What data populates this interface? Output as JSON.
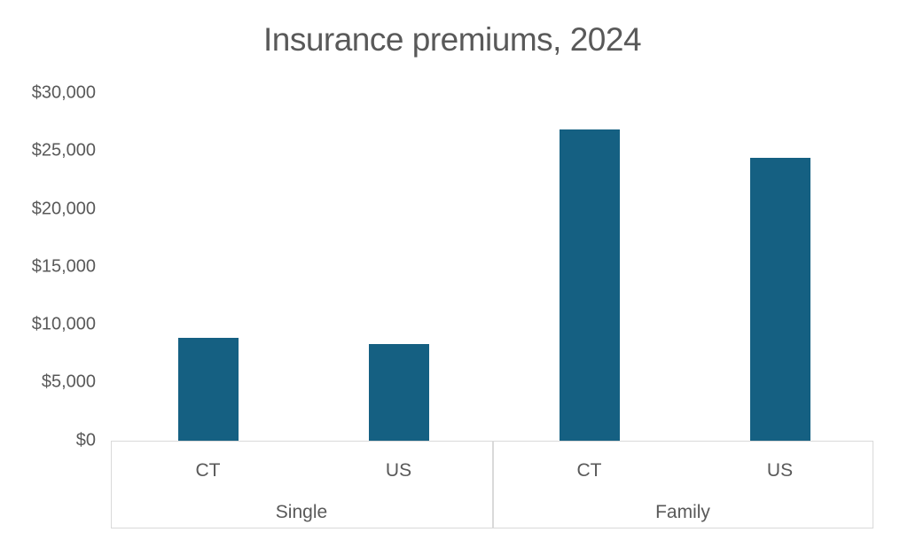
{
  "title": "Insurance premiums, 2024",
  "chart_data": {
    "type": "bar",
    "title": "Insurance premiums, 2024",
    "ylabel": "",
    "xlabel": "",
    "ylim": [
      0,
      30000
    ],
    "grid": false,
    "legend": "none",
    "yticks": [
      {
        "value": 0,
        "label": "$0"
      },
      {
        "value": 5000,
        "label": "$5,000"
      },
      {
        "value": 10000,
        "label": "$10,000"
      },
      {
        "value": 15000,
        "label": "$15,000"
      },
      {
        "value": 20000,
        "label": "$20,000"
      },
      {
        "value": 25000,
        "label": "$25,000"
      },
      {
        "value": 30000,
        "label": "$30,000"
      }
    ],
    "groups": [
      {
        "label": "Single",
        "bars": [
          {
            "label": "CT",
            "value": 8900
          },
          {
            "label": "US",
            "value": 8400
          }
        ]
      },
      {
        "label": "Family",
        "bars": [
          {
            "label": "CT",
            "value": 26900
          },
          {
            "label": "US",
            "value": 24500
          }
        ]
      }
    ],
    "colors": {
      "bar": "#156082",
      "text": "#595959",
      "axis_line": "#d9d9d9",
      "background": "#ffffff"
    }
  }
}
